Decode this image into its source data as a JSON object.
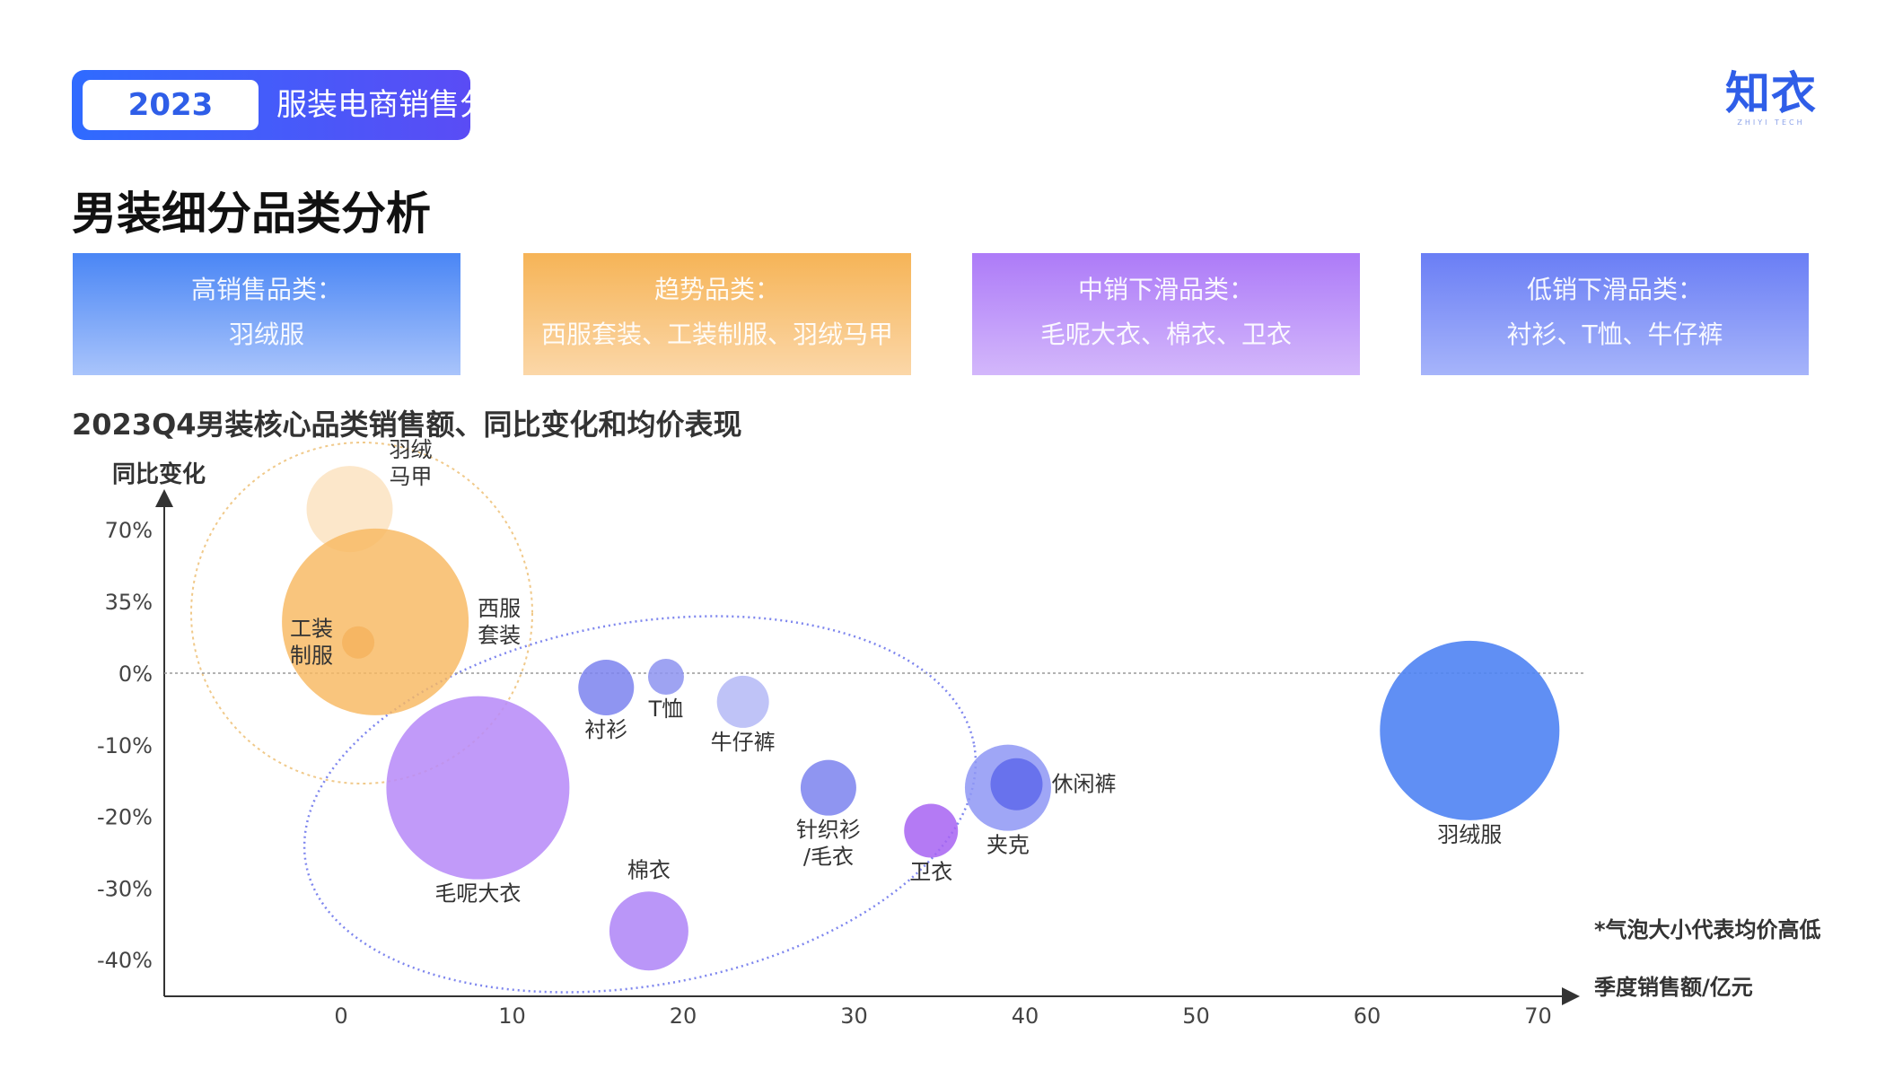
{
  "header": {
    "year": "2023",
    "subtitle": "服装电商销售分析",
    "logo": "知衣",
    "logo_sub": "ZHIYI TECH"
  },
  "page_title": "男装细分品类分析",
  "cards": [
    {
      "title": "高销售品类：",
      "items": "羽绒服"
    },
    {
      "title": "趋势品类：",
      "items": "西服套装、工装制服、羽绒马甲"
    },
    {
      "title": "中销下滑品类：",
      "items": "毛呢大衣、棉衣、卫衣"
    },
    {
      "title": "低销下滑品类：",
      "items": "衬衫、T恤、牛仔裤"
    }
  ],
  "note": "*气泡大小代表均价高低",
  "colors": {
    "blue": "#5b8ef5",
    "orange": "#f6b457",
    "purple": "#b88cf8",
    "indigo": "#8b92f0"
  },
  "chart_data": {
    "type": "scatter",
    "title": "2023Q4男装核心品类销售额、同比变化和均价表现",
    "xlabel": "季度销售额/亿元",
    "ylabel": "同比变化",
    "x_ticks": [
      0,
      10,
      20,
      30,
      40,
      50,
      60,
      70
    ],
    "y_ticks": [
      "70%",
      "35%",
      "0%",
      "-10%",
      "-20%",
      "-30%",
      "-40%"
    ],
    "points": [
      {
        "name": "羽绒马甲",
        "label_lines": [
          "羽绒",
          "马甲"
        ],
        "x": 0.5,
        "y": 0.8,
        "r": 48,
        "color": "#fce4c4",
        "opacity": 0.9,
        "label_pos": "right-top"
      },
      {
        "name": "西服套装",
        "label_lines": [
          "西服",
          "套装"
        ],
        "x": 2,
        "y": 0.25,
        "r": 104,
        "color": "#f8b860",
        "opacity": 0.82,
        "label_pos": "right"
      },
      {
        "name": "工装制服",
        "label_lines": [
          "工装",
          "制服"
        ],
        "x": 1,
        "y": 0.15,
        "r": 18,
        "color": "#f5b460",
        "opacity": 0.9,
        "label_pos": "left"
      },
      {
        "name": "毛呢大衣",
        "label_lines": [
          "毛呢大衣"
        ],
        "x": 8,
        "y": -0.16,
        "r": 102,
        "color": "#b88cf8",
        "opacity": 0.88,
        "label_pos": "below"
      },
      {
        "name": "衬衫",
        "label_lines": [
          "衬衫"
        ],
        "x": 15.5,
        "y": -0.02,
        "r": 31,
        "color": "#7b82ef",
        "opacity": 0.85,
        "label_pos": "below"
      },
      {
        "name": "T恤",
        "label_lines": [
          "T恤"
        ],
        "x": 19,
        "y": -0.005,
        "r": 20,
        "color": "#8d93f0",
        "opacity": 0.85,
        "label_pos": "below"
      },
      {
        "name": "牛仔裤",
        "label_lines": [
          "牛仔裤"
        ],
        "x": 23.5,
        "y": -0.04,
        "r": 29,
        "color": "#b4b8f6",
        "opacity": 0.85,
        "label_pos": "below"
      },
      {
        "name": "针织衫/毛衣",
        "label_lines": [
          "针织衫",
          "/毛衣"
        ],
        "x": 28.5,
        "y": -0.16,
        "r": 31,
        "color": "#7b82ef",
        "opacity": 0.85,
        "label_pos": "below"
      },
      {
        "name": "卫衣",
        "label_lines": [
          "卫衣"
        ],
        "x": 34.5,
        "y": -0.22,
        "r": 30,
        "color": "#a763f2",
        "opacity": 0.85,
        "label_pos": "below"
      },
      {
        "name": "夹克",
        "label_lines": [
          "夹克"
        ],
        "x": 39,
        "y": -0.16,
        "r": 48,
        "color": "#8e96f4",
        "opacity": 0.85,
        "label_pos": "below"
      },
      {
        "name": "休闲裤",
        "label_lines": [
          "休闲裤"
        ],
        "x": 39.5,
        "y": -0.155,
        "r": 29,
        "color": "#5560ea",
        "opacity": 0.75,
        "label_pos": "right"
      },
      {
        "name": "棉衣",
        "label_lines": [
          "棉衣"
        ],
        "x": 18,
        "y": -0.36,
        "r": 44,
        "color": "#b088f7",
        "opacity": 0.88,
        "label_pos": "above"
      },
      {
        "name": "羽绒服",
        "label_lines": [
          "羽绒服"
        ],
        "x": 66,
        "y": -0.08,
        "r": 100,
        "color": "#4f83f3",
        "opacity": 0.9,
        "label_pos": "below"
      }
    ]
  }
}
